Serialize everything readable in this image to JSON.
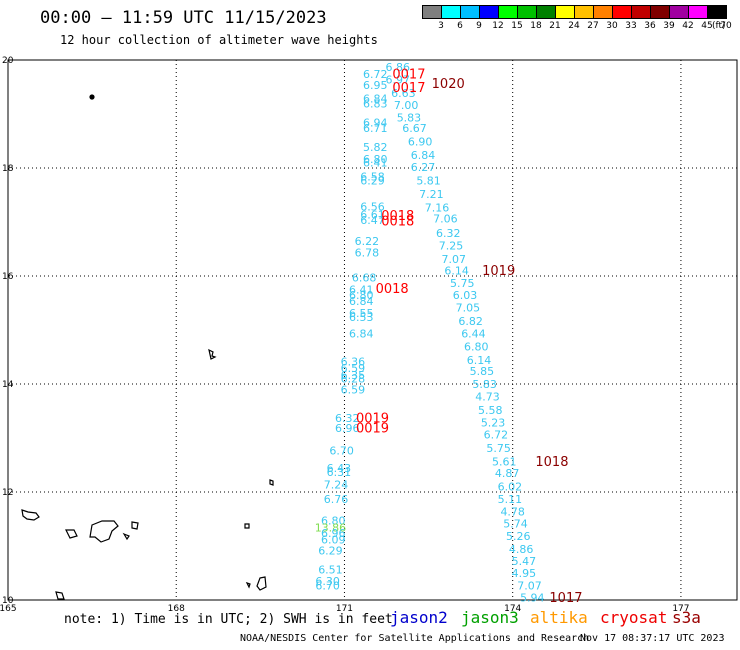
{
  "title": "00:00 – 11:59 UTC 11/15/2023",
  "subtitle": "12 hour collection of altimeter wave heights",
  "legend": {
    "unit": "(ft)",
    "bins": [
      {
        "label": "3",
        "color": "#7f7f7f"
      },
      {
        "label": "6",
        "color": "#00ffff"
      },
      {
        "label": "9",
        "color": "#00bfff"
      },
      {
        "label": "12",
        "color": "#0000ff"
      },
      {
        "label": "15",
        "color": "#00ff00"
      },
      {
        "label": "18",
        "color": "#00c000"
      },
      {
        "label": "21",
        "color": "#008000"
      },
      {
        "label": "24",
        "color": "#ffff00"
      },
      {
        "label": "27",
        "color": "#ffc000"
      },
      {
        "label": "30",
        "color": "#ff8000"
      },
      {
        "label": "33",
        "color": "#ff0000"
      },
      {
        "label": "36",
        "color": "#c00000"
      },
      {
        "label": "39",
        "color": "#800000"
      },
      {
        "label": "42",
        "color": "#a000a0"
      },
      {
        "label": "45",
        "color": "#ff00ff"
      },
      {
        "label": "70",
        "color": "#000000"
      }
    ]
  },
  "axes": {
    "x_ticks": [
      "165",
      "168",
      "171",
      "174",
      "177"
    ],
    "y_ticks": [
      "20",
      "18",
      "16",
      "14",
      "12",
      "10"
    ],
    "lon_range": [
      165,
      178
    ],
    "lat_range": [
      10,
      20
    ]
  },
  "colors": {
    "wave": "#3cc8f0",
    "time_red": "#ff0000",
    "time_dark": "#8b0000",
    "green": "#7fdd50"
  },
  "readings": [
    {
      "t": "6.86",
      "lon": 171.95,
      "lat": 19.85
    },
    {
      "t": "6.72",
      "lon": 171.55,
      "lat": 19.72
    },
    {
      "t": "6.97",
      "lon": 171.95,
      "lat": 19.62
    },
    {
      "t": "6.95",
      "lon": 171.55,
      "lat": 19.52
    },
    {
      "t": "6.63",
      "lon": 172.05,
      "lat": 19.37
    },
    {
      "t": "6.84",
      "lon": 171.55,
      "lat": 19.27
    },
    {
      "t": "6.83",
      "lon": 171.55,
      "lat": 19.18
    },
    {
      "t": "7.00",
      "lon": 172.1,
      "lat": 19.15
    },
    {
      "t": "5.83",
      "lon": 172.15,
      "lat": 18.92
    },
    {
      "t": "6.94",
      "lon": 171.55,
      "lat": 18.82
    },
    {
      "t": "6.71",
      "lon": 171.55,
      "lat": 18.72
    },
    {
      "t": "6.67",
      "lon": 172.25,
      "lat": 18.72
    },
    {
      "t": "6.90",
      "lon": 172.35,
      "lat": 18.47
    },
    {
      "t": "5.82",
      "lon": 171.55,
      "lat": 18.37
    },
    {
      "t": "6.84",
      "lon": 172.4,
      "lat": 18.22
    },
    {
      "t": "6.80",
      "lon": 171.55,
      "lat": 18.15
    },
    {
      "t": "6.41",
      "lon": 171.55,
      "lat": 18.08
    },
    {
      "t": "6.27",
      "lon": 172.4,
      "lat": 18.0
    },
    {
      "t": "6.58",
      "lon": 171.5,
      "lat": 17.82
    },
    {
      "t": "6.29",
      "lon": 171.5,
      "lat": 17.75
    },
    {
      "t": "5.81",
      "lon": 172.5,
      "lat": 17.75
    },
    {
      "t": "7.21",
      "lon": 172.55,
      "lat": 17.5
    },
    {
      "t": "6.56",
      "lon": 171.5,
      "lat": 17.27
    },
    {
      "t": "7.16",
      "lon": 172.65,
      "lat": 17.25
    },
    {
      "t": "6.61",
      "lon": 171.5,
      "lat": 17.12
    },
    {
      "t": "6.47",
      "lon": 171.5,
      "lat": 17.02
    },
    {
      "t": "7.06",
      "lon": 172.8,
      "lat": 17.05
    },
    {
      "t": "6.32",
      "lon": 172.85,
      "lat": 16.78
    },
    {
      "t": "6.22",
      "lon": 171.4,
      "lat": 16.63
    },
    {
      "t": "7.25",
      "lon": 172.9,
      "lat": 16.55
    },
    {
      "t": "6.78",
      "lon": 171.4,
      "lat": 16.42
    },
    {
      "t": "7.07",
      "lon": 172.95,
      "lat": 16.3
    },
    {
      "t": "6.14",
      "lon": 173.0,
      "lat": 16.08
    },
    {
      "t": "6.68",
      "lon": 171.35,
      "lat": 15.95
    },
    {
      "t": "5.75",
      "lon": 173.1,
      "lat": 15.85
    },
    {
      "t": "6.41",
      "lon": 171.3,
      "lat": 15.73
    },
    {
      "t": "6.80",
      "lon": 171.3,
      "lat": 15.63
    },
    {
      "t": "6.03",
      "lon": 173.15,
      "lat": 15.63
    },
    {
      "t": "6.84",
      "lon": 171.3,
      "lat": 15.52
    },
    {
      "t": "7.05",
      "lon": 173.2,
      "lat": 15.4
    },
    {
      "t": "6.55",
      "lon": 171.3,
      "lat": 15.3
    },
    {
      "t": "6.53",
      "lon": 171.3,
      "lat": 15.22
    },
    {
      "t": "6.82",
      "lon": 173.25,
      "lat": 15.15
    },
    {
      "t": "6.84",
      "lon": 171.3,
      "lat": 14.92
    },
    {
      "t": "6.44",
      "lon": 173.3,
      "lat": 14.92
    },
    {
      "t": "6.80",
      "lon": 173.35,
      "lat": 14.68
    },
    {
      "t": "6.14",
      "lon": 173.4,
      "lat": 14.43
    },
    {
      "t": "6.36",
      "lon": 171.15,
      "lat": 14.4
    },
    {
      "t": "6.59",
      "lon": 171.15,
      "lat": 14.28
    },
    {
      "t": "6.35",
      "lon": 171.15,
      "lat": 14.15
    },
    {
      "t": "6.28",
      "lon": 171.15,
      "lat": 14.08
    },
    {
      "t": "5.85",
      "lon": 173.45,
      "lat": 14.22
    },
    {
      "t": "5.83",
      "lon": 173.5,
      "lat": 13.98
    },
    {
      "t": "6.59",
      "lon": 171.15,
      "lat": 13.88
    },
    {
      "t": "4.73",
      "lon": 173.55,
      "lat": 13.75
    },
    {
      "t": "5.58",
      "lon": 173.6,
      "lat": 13.5
    },
    {
      "t": "6.32",
      "lon": 171.05,
      "lat": 13.35
    },
    {
      "t": "5.23",
      "lon": 173.65,
      "lat": 13.27
    },
    {
      "t": "6.96",
      "lon": 171.05,
      "lat": 13.17
    },
    {
      "t": "6.72",
      "lon": 173.7,
      "lat": 13.05
    },
    {
      "t": "5.75",
      "lon": 173.75,
      "lat": 12.8
    },
    {
      "t": "6.70",
      "lon": 170.95,
      "lat": 12.75
    },
    {
      "t": "5.61",
      "lon": 173.85,
      "lat": 12.55
    },
    {
      "t": "6.43",
      "lon": 170.9,
      "lat": 12.43
    },
    {
      "t": "6.31",
      "lon": 170.9,
      "lat": 12.35
    },
    {
      "t": "4.87",
      "lon": 173.9,
      "lat": 12.33
    },
    {
      "t": "7.24",
      "lon": 170.85,
      "lat": 12.12
    },
    {
      "t": "6.02",
      "lon": 173.95,
      "lat": 12.08
    },
    {
      "t": "6.76",
      "lon": 170.85,
      "lat": 11.85
    },
    {
      "t": "5.11",
      "lon": 173.95,
      "lat": 11.85
    },
    {
      "t": "4.78",
      "lon": 174.0,
      "lat": 11.62
    },
    {
      "t": "6.80",
      "lon": 170.8,
      "lat": 11.45
    },
    {
      "t": "5.74",
      "lon": 174.05,
      "lat": 11.4
    },
    {
      "t": "13.86",
      "lon": 170.75,
      "lat": 11.32,
      "c": "green"
    },
    {
      "t": "6.96",
      "lon": 170.8,
      "lat": 11.22
    },
    {
      "t": "5.26",
      "lon": 174.1,
      "lat": 11.17
    },
    {
      "t": "6.09",
      "lon": 170.8,
      "lat": 11.1
    },
    {
      "t": "4.86",
      "lon": 174.15,
      "lat": 10.93
    },
    {
      "t": "6.29",
      "lon": 170.75,
      "lat": 10.9
    },
    {
      "t": "5.47",
      "lon": 174.2,
      "lat": 10.7
    },
    {
      "t": "6.51",
      "lon": 170.75,
      "lat": 10.55
    },
    {
      "t": "4.95",
      "lon": 174.2,
      "lat": 10.48
    },
    {
      "t": "6.30",
      "lon": 170.7,
      "lat": 10.33
    },
    {
      "t": "6.70",
      "lon": 170.7,
      "lat": 10.25
    },
    {
      "t": "7.07",
      "lon": 174.3,
      "lat": 10.25
    },
    {
      "t": "5.94",
      "lon": 174.35,
      "lat": 10.03
    }
  ],
  "times": [
    {
      "t": "0017",
      "lon": 172.15,
      "lat": 19.72,
      "c": "red"
    },
    {
      "t": "1020",
      "lon": 172.85,
      "lat": 19.55,
      "c": "dark"
    },
    {
      "t": "0017",
      "lon": 172.15,
      "lat": 19.47,
      "c": "red"
    },
    {
      "t": "0018",
      "lon": 171.95,
      "lat": 17.1,
      "c": "red"
    },
    {
      "t": "0018",
      "lon": 171.95,
      "lat": 17.0,
      "c": "red"
    },
    {
      "t": "1019",
      "lon": 173.75,
      "lat": 16.08,
      "c": "dark"
    },
    {
      "t": "0018",
      "lon": 171.85,
      "lat": 15.75,
      "c": "red"
    },
    {
      "t": "0019",
      "lon": 171.5,
      "lat": 13.35,
      "c": "red"
    },
    {
      "t": "0019",
      "lon": 171.5,
      "lat": 13.17,
      "c": "red"
    },
    {
      "t": "1018",
      "lon": 174.7,
      "lat": 12.55,
      "c": "dark"
    },
    {
      "t": "1017",
      "lon": 174.95,
      "lat": 10.03,
      "c": "dark"
    }
  ],
  "note": "note: 1) Time is in UTC; 2) SWH is in feet",
  "satellites": [
    {
      "name": "jason2",
      "color": "#0000cc"
    },
    {
      "name": "jason3",
      "color": "#00a000"
    },
    {
      "name": "altika",
      "color": "#ff9900"
    },
    {
      "name": "cryosat",
      "color": "#ee0000"
    },
    {
      "name": "s3a",
      "color": "#990000"
    }
  ],
  "footer": {
    "left": "NOAA/NESDIS Center for Satellite Applications and Research",
    "right": "Nov 17 08:37:17 UTC 2023"
  }
}
